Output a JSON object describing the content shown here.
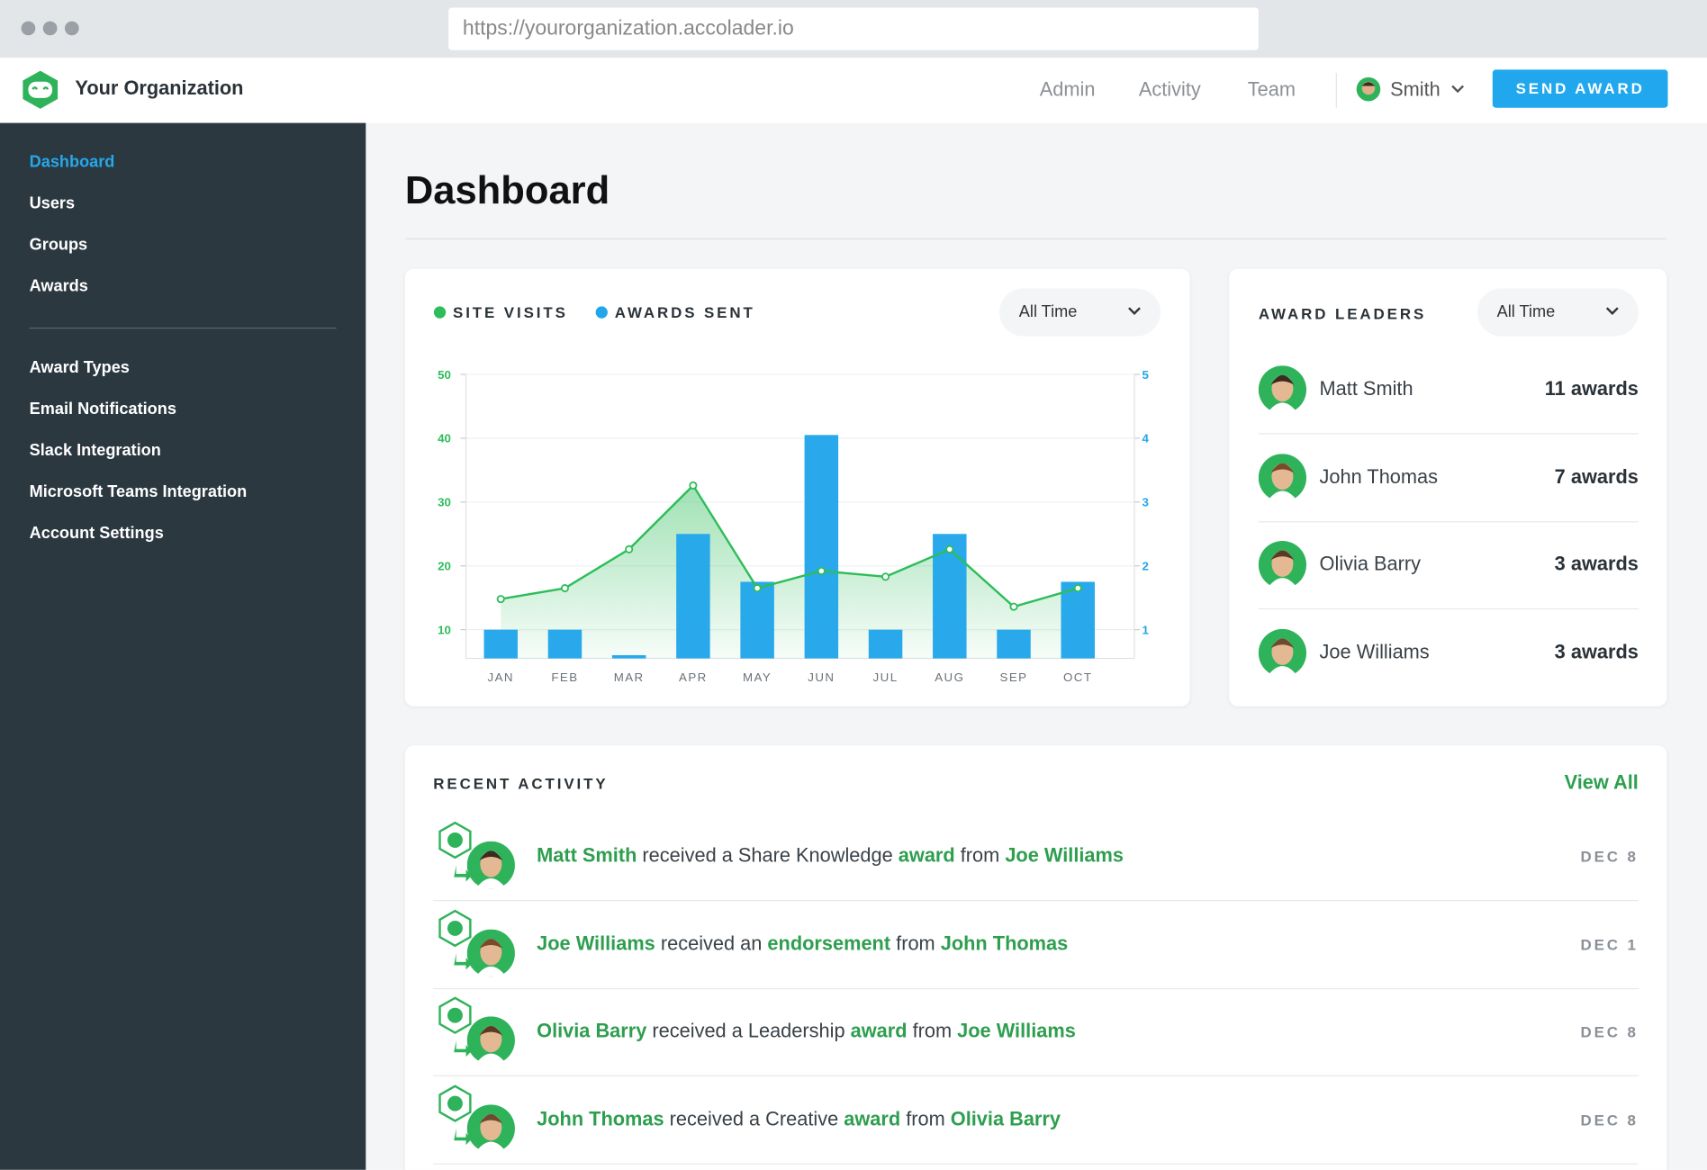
{
  "browser": {
    "url": "https://yourorganization.accolader.io"
  },
  "header": {
    "org_name": "Your Organization",
    "nav": [
      "Admin",
      "Activity",
      "Team"
    ],
    "user": "Smith",
    "button": "SEND AWARD"
  },
  "sidebar": {
    "menu": [
      "Dashboard",
      "Users",
      "Groups",
      "Awards"
    ],
    "settings": [
      "Award Types",
      "Email Notifications",
      "Slack Integration",
      "Microsoft Teams Integration",
      "Account Settings"
    ]
  },
  "page_title": "Dashboard",
  "chart_filter": "All Time",
  "chart_data": {
    "type": "bar_line",
    "categories": [
      "JAN",
      "FEB",
      "MAR",
      "APR",
      "MAY",
      "JUN",
      "JUL",
      "AUG",
      "SEP",
      "OCT"
    ],
    "series": [
      {
        "name": "SITE VISITS",
        "color": "#2dbd5a",
        "type": "line",
        "values": [
          14.8,
          16.5,
          22.6,
          32.6,
          16.5,
          19.2,
          18.3,
          22.6,
          13.6,
          16.5
        ]
      },
      {
        "name": "AWARDS SENT",
        "color": "#22a6ea",
        "type": "bar",
        "axis": "y2",
        "values": [
          1,
          1,
          0.6,
          2.5,
          1.75,
          4.05,
          1,
          2.5,
          1,
          1.75
        ]
      }
    ],
    "ylim": [
      5.5,
      50
    ],
    "yticks": [
      10,
      20,
      30,
      40,
      50
    ],
    "y2lim": [
      0.55,
      5
    ],
    "y2ticks": [
      1,
      2,
      3,
      4,
      5
    ],
    "grid": true
  },
  "leaders": {
    "title": "AWARD LEADERS",
    "filter": "All Time",
    "items": [
      {
        "name": "Matt Smith",
        "awards": "11 awards"
      },
      {
        "name": "John Thomas",
        "awards": "7 awards"
      },
      {
        "name": "Olivia Barry",
        "awards": "3 awards"
      },
      {
        "name": "Joe Williams",
        "awards": "3 awards"
      }
    ]
  },
  "activity": {
    "title": "RECENT ACTIVITY",
    "view_all": "View All",
    "items": [
      {
        "recipient": "Matt Smith",
        "text": "received a Share Knowledge",
        "link": "award",
        "from": "from",
        "sender": "Joe Williams",
        "date": "DEC 8"
      },
      {
        "recipient": "Joe Williams",
        "text": "received an",
        "link": "endorsement",
        "from": "from",
        "sender": "John Thomas",
        "date": "DEC 1"
      },
      {
        "recipient": "Olivia Barry",
        "text": "received a Leadership",
        "link": "award",
        "from": "from",
        "sender": "Joe Williams",
        "date": "DEC 8"
      },
      {
        "recipient": "John Thomas",
        "text": "received a Creative",
        "link": "award",
        "from": "from",
        "sender": "Olivia Barry",
        "date": "DEC 8"
      }
    ]
  }
}
